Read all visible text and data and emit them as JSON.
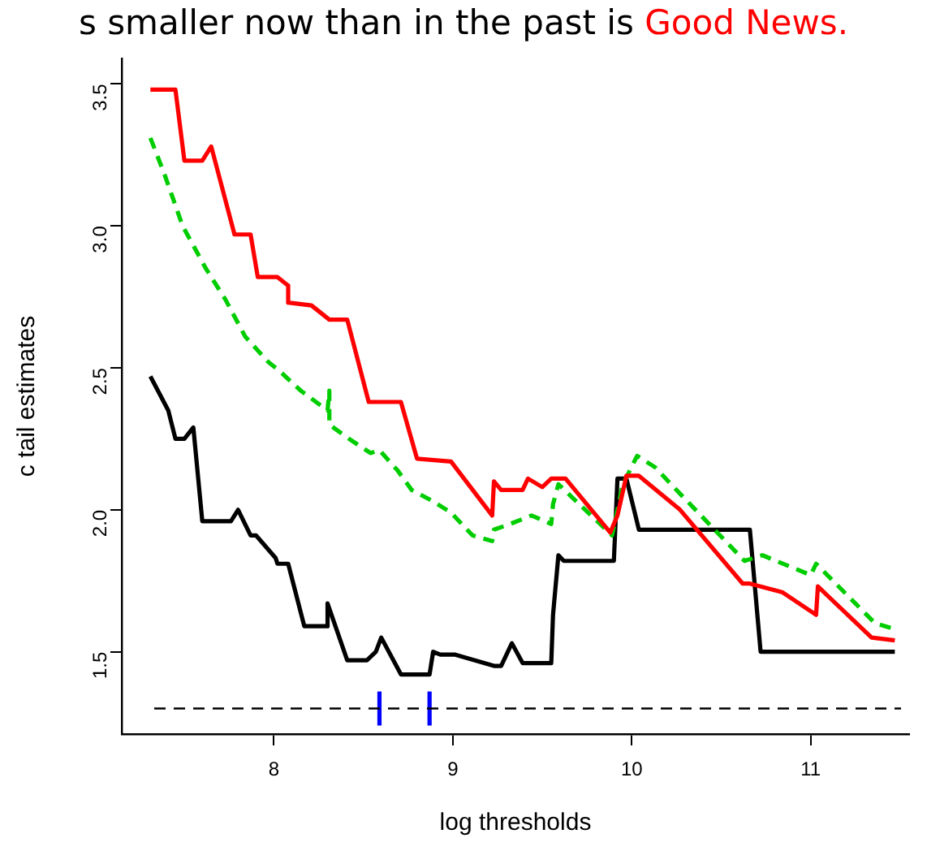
{
  "chart_data": {
    "type": "line",
    "title": "s smaller now than in the past is",
    "annotations": [
      "Good News."
    ],
    "xlabel": "log thresholds",
    "ylabel": "c tail estimates",
    "xlim": [
      7.15,
      11.55
    ],
    "xticks": [
      8,
      9,
      10,
      11
    ],
    "ylim": [
      1.21,
      3.59
    ],
    "yticks": [
      1.5,
      {
        "value": 2,
        "label": "2.0"
      },
      2.5,
      {
        "value": 3,
        "label": "3.0"
      },
      3.5
    ],
    "grid": false,
    "legend": false,
    "marker": "none",
    "ref_lines": [
      {
        "axis": "y",
        "value": 1.3,
        "color": "#000000",
        "line_style": "dashed"
      }
    ],
    "series": [
      {
        "color": "#ff0000",
        "line_style": "solid",
        "x": [
          7.31,
          7.45,
          7.5,
          7.6,
          7.65,
          7.78,
          7.87,
          7.91,
          8.02,
          8.08,
          8.08,
          8.21,
          8.31,
          8.41,
          8.53,
          8.71,
          8.8,
          8.99,
          9.22,
          9.23,
          9.27,
          9.39,
          9.42,
          9.5,
          9.55,
          9.63,
          9.88,
          9.92,
          9.97,
          10.04,
          10.27,
          10.62,
          10.66,
          10.84,
          11.03,
          11.04,
          11.34,
          11.47
        ],
        "values": [
          3.48,
          3.48,
          3.23,
          3.23,
          3.28,
          2.97,
          2.97,
          2.82,
          2.82,
          2.79,
          2.73,
          2.72,
          2.67,
          2.67,
          2.38,
          2.38,
          2.18,
          2.17,
          1.98,
          2.1,
          2.07,
          2.07,
          2.11,
          2.08,
          2.11,
          2.11,
          1.92,
          1.98,
          2.12,
          2.12,
          2,
          1.74,
          1.74,
          1.71,
          1.63,
          1.73,
          1.55,
          1.54
        ]
      },
      {
        "color": "#00cd00",
        "line_style": "dashed",
        "x": [
          7.31,
          7.39,
          7.49,
          7.62,
          7.73,
          7.84,
          7.97,
          8.03,
          8.15,
          8.3,
          8.31,
          8.31,
          8.42,
          8.54,
          8.59,
          8.69,
          8.77,
          8.89,
          8.99,
          9.11,
          9.22,
          9.23,
          9.32,
          9.44,
          9.55,
          9.56,
          9.59,
          9.89,
          9.95,
          10.03,
          10.13,
          10.28,
          10.63,
          10.73,
          11,
          11.03,
          11.36,
          11.47
        ],
        "values": [
          3.31,
          3.18,
          3,
          2.85,
          2.74,
          2.61,
          2.52,
          2.49,
          2.42,
          2.35,
          2.42,
          2.3,
          2.25,
          2.2,
          2.21,
          2.14,
          2.07,
          2.03,
          1.99,
          1.91,
          1.89,
          1.93,
          1.95,
          1.98,
          1.95,
          2.02,
          2.09,
          1.91,
          2.09,
          2.19,
          2.15,
          2.05,
          1.82,
          1.84,
          1.77,
          1.81,
          1.6,
          1.58
        ]
      },
      {
        "color": "#000000",
        "line_style": "solid",
        "x": [
          7.31,
          7.41,
          7.45,
          7.5,
          7.55,
          7.6,
          7.76,
          7.8,
          7.87,
          7.9,
          8.01,
          8.02,
          8.08,
          8.17,
          8.3,
          8.3,
          8.41,
          8.52,
          8.57,
          8.6,
          8.71,
          8.87,
          8.89,
          8.93,
          9.01,
          9.23,
          9.27,
          9.33,
          9.39,
          9.55,
          9.56,
          9.59,
          9.62,
          9.9,
          9.92,
          9.97,
          10.04,
          10.66,
          10.72,
          11.47
        ],
        "values": [
          2.47,
          2.35,
          2.25,
          2.25,
          2.29,
          1.96,
          1.96,
          2,
          1.91,
          1.91,
          1.83,
          1.81,
          1.81,
          1.59,
          1.59,
          1.67,
          1.47,
          1.47,
          1.5,
          1.55,
          1.42,
          1.42,
          1.5,
          1.49,
          1.49,
          1.45,
          1.45,
          1.53,
          1.46,
          1.46,
          1.63,
          1.84,
          1.82,
          1.82,
          2.11,
          2.11,
          1.93,
          1.93,
          1.5,
          1.5
        ]
      },
      {
        "color": "#0000ff",
        "line_style": "solid",
        "x": [
          8.59,
          8.59
        ],
        "values": [
          1.24,
          1.36
        ]
      },
      {
        "color": "#0000ff",
        "line_style": "solid",
        "x": [
          8.87,
          8.87
        ],
        "values": [
          1.24,
          1.36
        ]
      }
    ]
  }
}
